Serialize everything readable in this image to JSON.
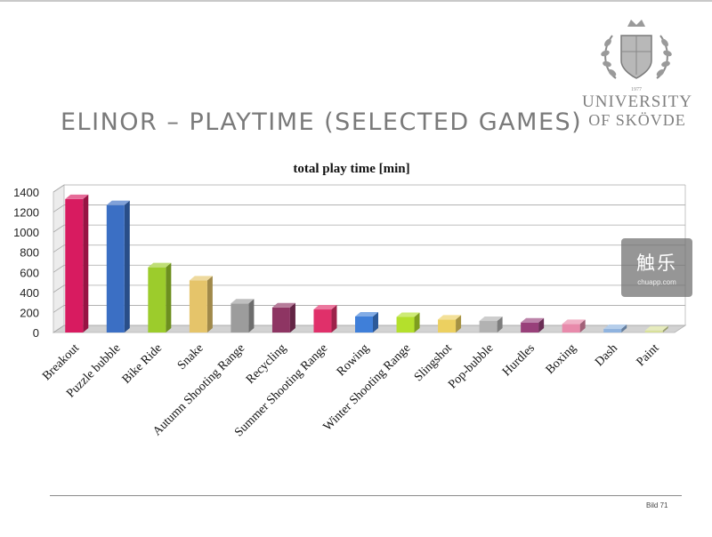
{
  "slide": {
    "title": "ELINOR – PLAYTIME (SELECTED GAMES)",
    "number": "Bild 71"
  },
  "logo": {
    "line1": "UNIVERSITY",
    "line2": "OF SKÖVDE",
    "year": "1977"
  },
  "watermark": {
    "title": "触乐",
    "subtitle": "chuapp.com"
  },
  "chart_data": {
    "type": "bar",
    "title": "total play time [min]",
    "xlabel": "",
    "ylabel": "",
    "ylim": [
      0,
      1400
    ],
    "yticks": [
      0,
      200,
      400,
      600,
      800,
      1000,
      1200,
      1400
    ],
    "grid": true,
    "categories": [
      "Breakout",
      "Puzzle bubble",
      "Bike Ride",
      "Snake",
      "Autumn Shooting Range",
      "Recycling",
      "Summer Shooting Range",
      "Rowing",
      "Winter Shooting Range",
      "Slingshot",
      "Pop-bubble",
      "Hurdles",
      "Boxing",
      "Dash",
      "Paint"
    ],
    "values": [
      1330,
      1270,
      650,
      520,
      290,
      250,
      230,
      160,
      155,
      130,
      115,
      100,
      85,
      35,
      20
    ],
    "colors": [
      "#d81b60",
      "#3b6fc4",
      "#9ccc2c",
      "#e5c46a",
      "#9c9c9c",
      "#8e3563",
      "#e0306a",
      "#3f7fd9",
      "#b4e02c",
      "#ecd060",
      "#b2b2b2",
      "#98407a",
      "#e88aab",
      "#8fb3df",
      "#d8e09a"
    ]
  }
}
